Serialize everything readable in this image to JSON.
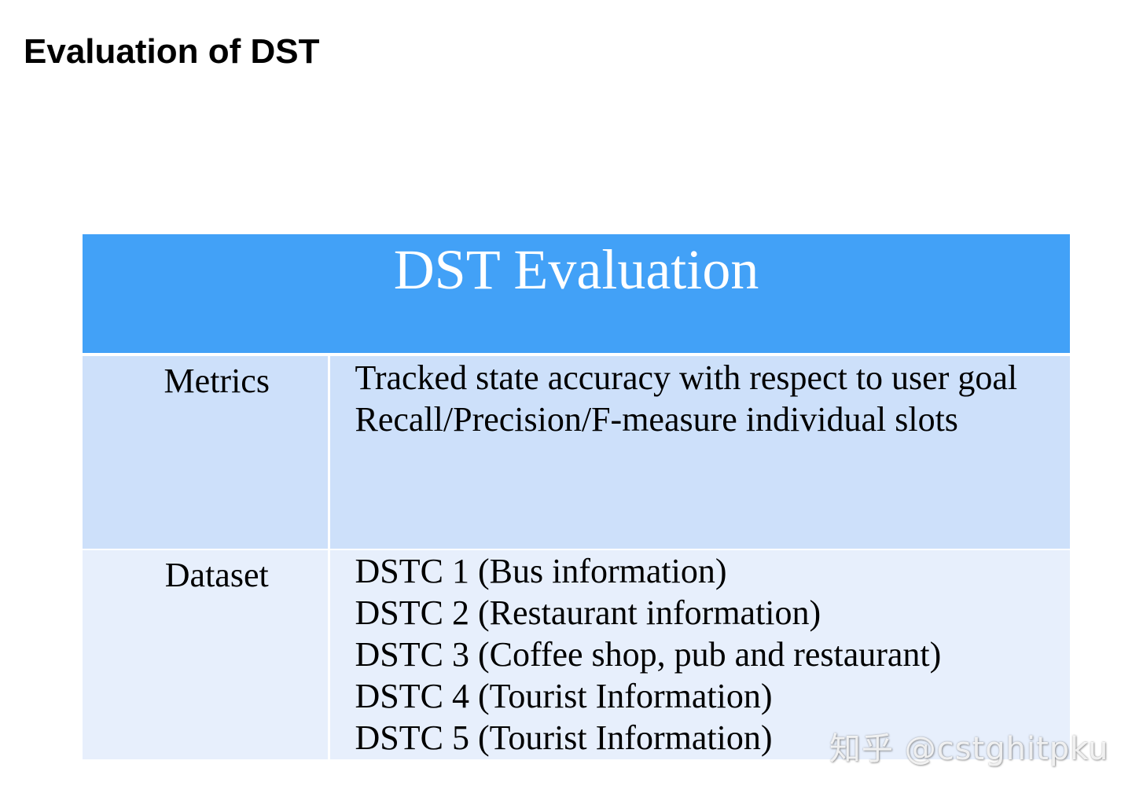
{
  "slide": {
    "title": "Evaluation of DST"
  },
  "table": {
    "header": "DST Evaluation",
    "rows": [
      {
        "label": "Metrics",
        "lines": [
          "Tracked state accuracy with respect to user goal",
          "Recall/Precision/F-measure individual slots"
        ]
      },
      {
        "label": "Dataset",
        "lines": [
          "DSTC 1 (Bus information)",
          "DSTC 2 (Restaurant information)",
          "DSTC 3 (Coffee shop, pub and restaurant)",
          "DSTC 4 (Tourist Information)",
          "DSTC 5 (Tourist Information)"
        ]
      }
    ]
  },
  "watermark": {
    "text": "知乎 @cstghitpku"
  },
  "colors": {
    "header_bg": "#42a1f7",
    "row1_bg": "#cde0fa",
    "row2_bg": "#e7effc",
    "text": "#000000",
    "header_text": "#ffffff"
  }
}
